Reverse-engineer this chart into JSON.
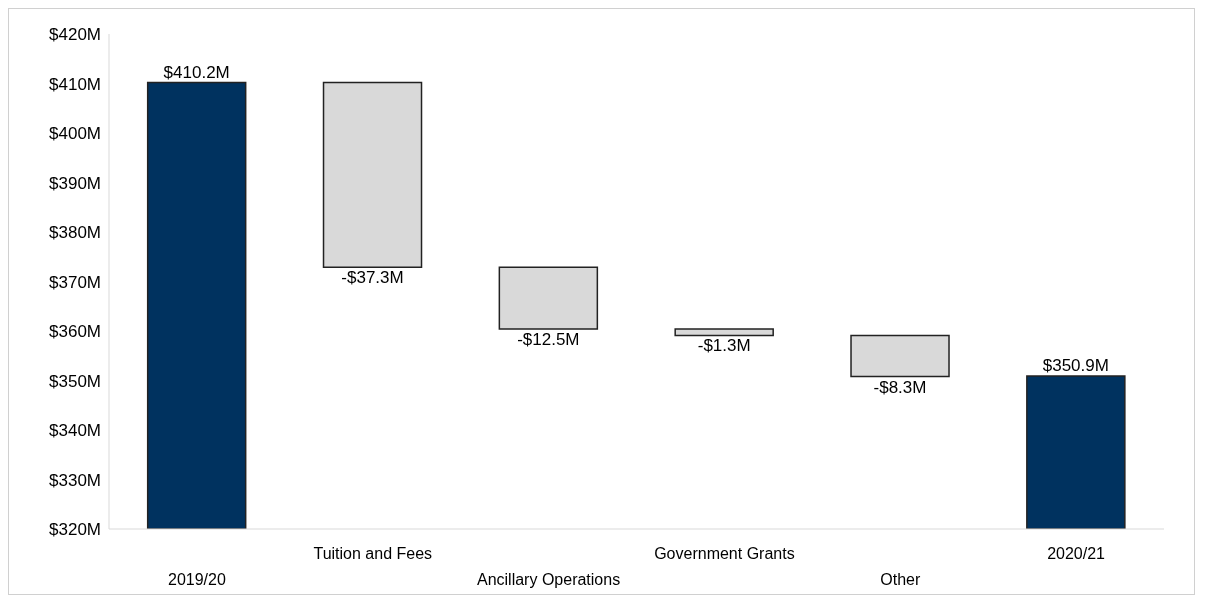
{
  "chart_data": {
    "type": "bar",
    "categories": [
      "2019/20",
      "Tuition and Fees",
      "Ancillary Operations",
      "Government Grants",
      "Other",
      "2020/21"
    ],
    "values": [
      410.2,
      -37.3,
      -12.5,
      -1.3,
      -8.3,
      350.9
    ],
    "base": [
      null,
      410.2,
      372.9,
      360.4,
      359.1,
      null
    ],
    "colors": [
      "#00325f",
      "#d9d9d9",
      "#d9d9d9",
      "#d9d9d9",
      "#d9d9d9",
      "#00325f"
    ],
    "value_labels": [
      "$410.2M",
      "-$37.3M",
      "-$12.5M",
      "-$1.3M",
      "-$8.3M",
      "$350.9M"
    ],
    "ylim": [
      320,
      420
    ],
    "yticks": [
      {
        "value": 320,
        "label": "$320M"
      },
      {
        "value": 330,
        "label": "$330M"
      },
      {
        "value": 340,
        "label": "$340M"
      },
      {
        "value": 350,
        "label": "$350M"
      },
      {
        "value": 360,
        "label": "$360M"
      },
      {
        "value": 370,
        "label": "$370M"
      },
      {
        "value": 380,
        "label": "$380M"
      },
      {
        "value": 390,
        "label": "$390M"
      },
      {
        "value": 400,
        "label": "$400M"
      },
      {
        "value": 410,
        "label": "$410M"
      },
      {
        "value": 420,
        "label": "$420M"
      }
    ],
    "grid": false,
    "legend": false
  }
}
